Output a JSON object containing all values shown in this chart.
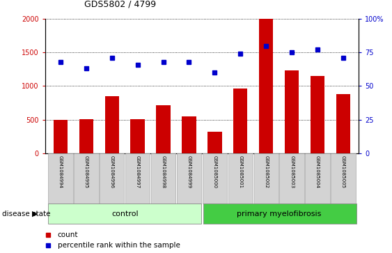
{
  "title": "GDS5802 / 4799",
  "samples": [
    "GSM1084994",
    "GSM1084995",
    "GSM1084996",
    "GSM1084997",
    "GSM1084998",
    "GSM1084999",
    "GSM1085000",
    "GSM1085001",
    "GSM1085002",
    "GSM1085003",
    "GSM1085004",
    "GSM1085005"
  ],
  "counts": [
    500,
    510,
    850,
    510,
    710,
    550,
    315,
    960,
    2000,
    1230,
    1150,
    880
  ],
  "percentiles": [
    68,
    63,
    71,
    66,
    68,
    68,
    60,
    74,
    80,
    75,
    77,
    71
  ],
  "bar_color": "#cc0000",
  "dot_color": "#0000cc",
  "ylim_left": [
    0,
    2000
  ],
  "ylim_right": [
    0,
    100
  ],
  "yticks_left": [
    0,
    500,
    1000,
    1500,
    2000
  ],
  "yticks_right": [
    0,
    25,
    50,
    75,
    100
  ],
  "ytick_labels_right": [
    "0",
    "25",
    "50",
    "75",
    "100%"
  ],
  "control_color": "#ccffcc",
  "myelofibrosis_color": "#44cc44",
  "tick_bg_color": "#d3d3d3",
  "legend_count_label": "count",
  "legend_percentile_label": "percentile rank within the sample",
  "disease_state_label": "disease state",
  "n_control": 6,
  "n_myelofibrosis": 6
}
